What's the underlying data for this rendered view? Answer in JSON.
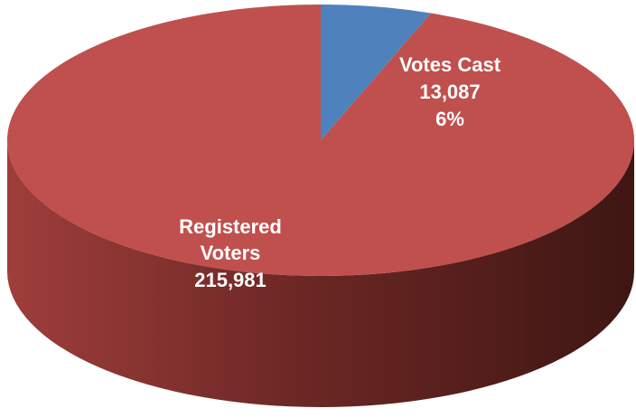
{
  "chart_data": {
    "type": "pie",
    "style": "3d",
    "slices": [
      {
        "label": "Registered Voters",
        "value": 215981,
        "value_label": "215,981",
        "percent_label": "",
        "color": "#c0504d"
      },
      {
        "label": "Votes Cast",
        "value": 13087,
        "value_label": "13,087",
        "percent_label": "6%",
        "color": "#4f81bd"
      }
    ],
    "title": "",
    "legend": "none"
  }
}
